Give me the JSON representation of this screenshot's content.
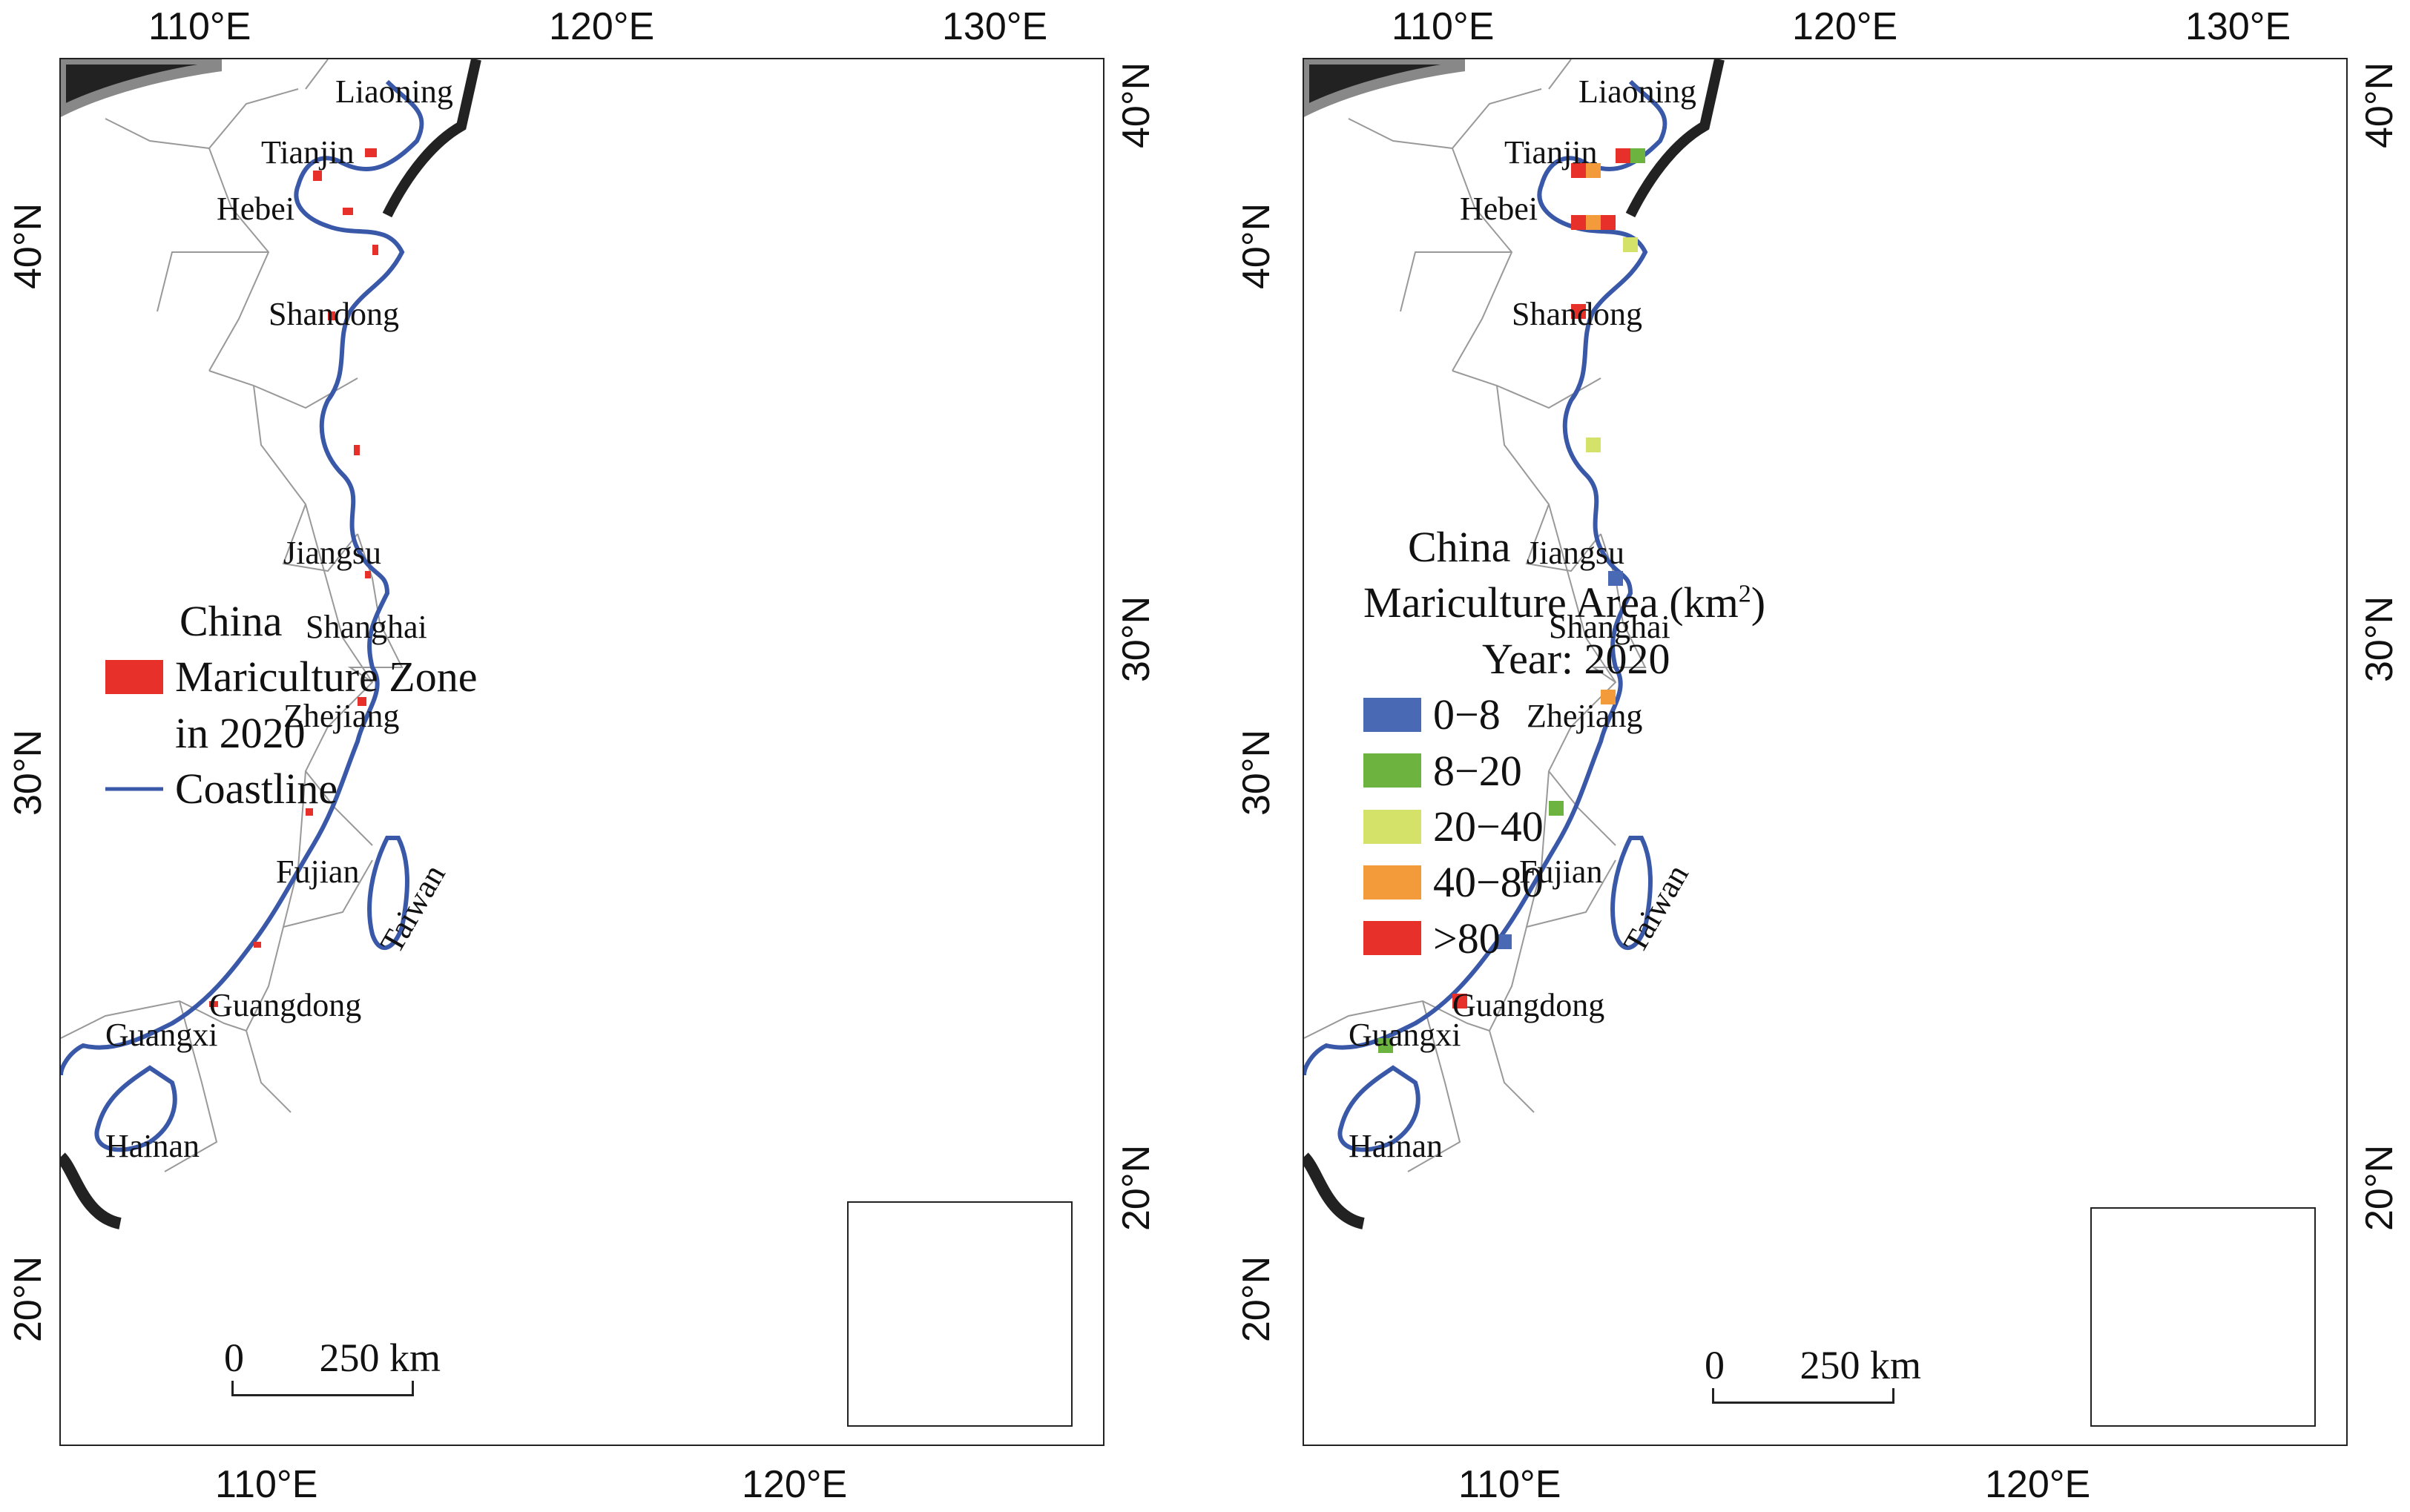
{
  "left_map": {
    "provinces": [
      "Liaoning",
      "Tianjin",
      "Hebei",
      "Shandong",
      "Jiangsu",
      "Shanghai",
      "Zhejiang",
      "Fujian",
      "Guangxi",
      "Guangdong",
      "Taiwan",
      "Hainan"
    ],
    "legend": {
      "title": "China",
      "zone_label_1": "Mariculture Zone",
      "zone_label_2": "in 2020",
      "coastline_label": "Coastline",
      "zone_color": "#e8302b",
      "coastline_color": "#3a58a8"
    },
    "scale_zero": "0",
    "scale_label": "250 km",
    "ticks": {
      "top": [
        "110°E",
        "120°E",
        "130°E"
      ],
      "bottom": [
        "110°E",
        "120°E"
      ],
      "left": [
        "40°N",
        "30°N",
        "20°N"
      ],
      "right": [
        "40°N",
        "30°N",
        "20°N"
      ]
    }
  },
  "right_map": {
    "provinces": [
      "Liaoning",
      "Tianjin",
      "Hebei",
      "Shandong",
      "Jiangsu",
      "Shanghai",
      "Zhejiang",
      "Fujian",
      "Guangxi",
      "Guangdong",
      "Taiwan",
      "Hainan"
    ],
    "legend": {
      "title": "China",
      "subtitle_pre": "Mariculture Area (km",
      "subtitle_sup": "2",
      "subtitle_post": ")",
      "year": "Year: 2020",
      "classes": [
        {
          "label": "0−8",
          "color": "#4a69b4"
        },
        {
          "label": "8−20",
          "color": "#6db33f"
        },
        {
          "label": "20−40",
          "color": "#d5e26a"
        },
        {
          "label": "40−80",
          "color": "#f39a3a"
        },
        {
          "label": ">80",
          "color": "#e8302b"
        }
      ]
    },
    "scale_zero": "0",
    "scale_label": "250 km",
    "ticks": {
      "top": [
        "110°E",
        "120°E",
        "130°E"
      ],
      "bottom": [
        "110°E",
        "120°E"
      ],
      "left": [
        "40°N",
        "30°N",
        "20°N"
      ],
      "right": [
        "40°N",
        "30°N",
        "20°N"
      ]
    }
  }
}
